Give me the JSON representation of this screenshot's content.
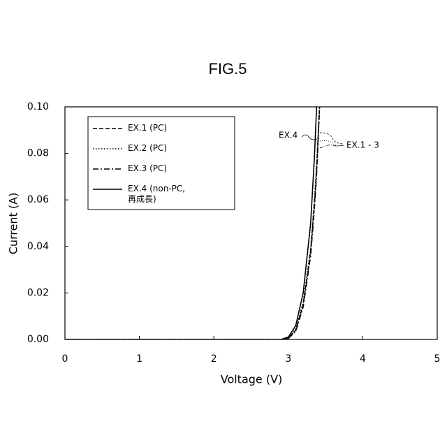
{
  "chart_data": {
    "type": "line",
    "title": "FIG.5",
    "x_label": "Voltage (V)",
    "y_label": "Current (A)",
    "x": [
      0,
      2.9,
      3.0,
      3.1,
      3.2,
      3.3,
      3.35,
      3.38,
      3.42
    ],
    "series": [
      {
        "name": "EX.1 (PC)",
        "color": "#000000",
        "style": "dashed",
        "values": [
          0,
          0,
          0.0005,
          0.004,
          0.015,
          0.038,
          0.058,
          0.073,
          0.1
        ]
      },
      {
        "name": "EX.2 (PC)",
        "color": "#000000",
        "style": "dotted",
        "values": [
          0,
          0,
          0.0005,
          0.0045,
          0.016,
          0.039,
          0.06,
          0.075,
          0.1
        ]
      },
      {
        "name": "EX.3 (PC)",
        "color": "#000000",
        "style": "dashdot",
        "values": [
          0,
          0,
          0.0004,
          0.0035,
          0.014,
          0.036,
          0.056,
          0.071,
          0.1
        ]
      },
      {
        "name": "EX.4 (non-PC,\n再成長)",
        "color": "#000000",
        "style": "solid",
        "values": [
          0,
          0,
          0.001,
          0.006,
          0.02,
          0.05,
          0.078,
          0.1,
          null
        ]
      }
    ],
    "xlim": [
      0,
      5
    ],
    "xticks": [
      0,
      1,
      2,
      3,
      4,
      5
    ],
    "ylim": [
      0,
      0.1
    ],
    "yticks": [
      {
        "value": 0,
        "label": "0.00"
      },
      {
        "value": 0.02,
        "label": "0.02"
      },
      {
        "value": 0.04,
        "label": "0.04"
      },
      {
        "value": 0.06,
        "label": "0.06"
      },
      {
        "value": 0.08,
        "label": "0.08"
      },
      {
        "value": 0.1,
        "label": "0.10"
      }
    ],
    "grid": false,
    "legend_position": "upper-left",
    "annotations": [
      "EX.4",
      "EX.1 - 3"
    ]
  }
}
